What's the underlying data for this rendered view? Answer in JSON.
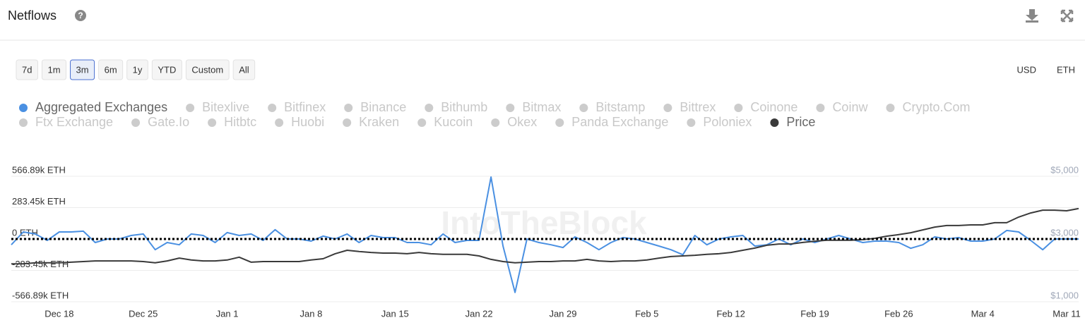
{
  "header": {
    "title": "Netflows"
  },
  "ui": {
    "ranges": [
      {
        "label": "7d",
        "active": false
      },
      {
        "label": "1m",
        "active": false
      },
      {
        "label": "3m",
        "active": true
      },
      {
        "label": "6m",
        "active": false
      },
      {
        "label": "1y",
        "active": false
      },
      {
        "label": "YTD",
        "active": false
      },
      {
        "label": "Custom",
        "active": false
      },
      {
        "label": "All",
        "active": false
      }
    ],
    "currencies": [
      {
        "label": "USD",
        "active": false
      },
      {
        "label": "ETH",
        "active": true
      }
    ]
  },
  "chart_data": {
    "type": "line",
    "watermark": "IntoTheBlock",
    "categories": [
      null,
      null,
      null,
      null,
      "Dec 18",
      null,
      null,
      null,
      null,
      null,
      null,
      "Dec 25",
      null,
      null,
      null,
      null,
      null,
      null,
      "Jan 1",
      null,
      null,
      null,
      null,
      null,
      null,
      "Jan 8",
      null,
      null,
      null,
      null,
      null,
      null,
      "Jan 15",
      null,
      null,
      null,
      null,
      null,
      null,
      "Jan 22",
      null,
      null,
      null,
      null,
      null,
      null,
      "Jan 29",
      null,
      null,
      null,
      null,
      null,
      null,
      "Feb 5",
      null,
      null,
      null,
      null,
      null,
      null,
      "Feb 12",
      null,
      null,
      null,
      null,
      null,
      null,
      "Feb 19",
      null,
      null,
      null,
      null,
      null,
      null,
      "Feb 26",
      null,
      null,
      null,
      null,
      null,
      null,
      "Mar 4",
      null,
      null,
      null,
      null,
      null,
      null,
      "Mar 11",
      null
    ],
    "series": [
      {
        "name": "Aggregated Exchanges",
        "color": "#4a90e2",
        "values": [
          -52000,
          64000,
          45000,
          -13000,
          64000,
          64000,
          71000,
          -32000,
          0,
          0,
          32000,
          45000,
          -97000,
          -32000,
          -52000,
          45000,
          32000,
          -32000,
          58000,
          32000,
          45000,
          -13000,
          84000,
          0,
          0,
          -19000,
          26000,
          0,
          45000,
          -32000,
          32000,
          13000,
          13000,
          -32000,
          -32000,
          -52000,
          45000,
          -32000,
          -13000,
          -13000,
          560000,
          -64000,
          -483000,
          0,
          -32000,
          -52000,
          -77000,
          19000,
          -32000,
          -97000,
          -32000,
          13000,
          0,
          -32000,
          -64000,
          -97000,
          -142000,
          32000,
          -52000,
          0,
          19000,
          32000,
          -64000,
          -52000,
          0,
          -52000,
          0,
          -32000,
          0,
          32000,
          0,
          -32000,
          -19000,
          -19000,
          -32000,
          -84000,
          -52000,
          19000,
          0,
          13000,
          -19000,
          -19000,
          0,
          77000,
          64000,
          -13000,
          -97000,
          0,
          0,
          0
        ]
      },
      {
        "name": "Price",
        "color": "#3a3a3a",
        "axis": "y2",
        "values": [
          2210,
          2210,
          2240,
          2240,
          2240,
          2260,
          2280,
          2300,
          2300,
          2300,
          2300,
          2280,
          2240,
          2300,
          2390,
          2330,
          2300,
          2300,
          2330,
          2420,
          2260,
          2280,
          2280,
          2280,
          2280,
          2330,
          2370,
          2530,
          2640,
          2600,
          2570,
          2550,
          2550,
          2530,
          2570,
          2530,
          2510,
          2510,
          2510,
          2460,
          2350,
          2280,
          2240,
          2260,
          2280,
          2280,
          2300,
          2300,
          2350,
          2300,
          2280,
          2300,
          2300,
          2330,
          2390,
          2440,
          2460,
          2480,
          2510,
          2530,
          2570,
          2640,
          2710,
          2800,
          2840,
          2840,
          2890,
          2930,
          2960,
          2960,
          2960,
          2980,
          3020,
          3090,
          3140,
          3200,
          3290,
          3380,
          3430,
          3430,
          3450,
          3450,
          3520,
          3520,
          3700,
          3830,
          3920,
          3920,
          3900,
          3970
        ]
      }
    ],
    "hidden_series": [
      "Bitexlive",
      "Bitfinex",
      "Binance",
      "Bithumb",
      "Bitmax",
      "Bitstamp",
      "Bittrex",
      "Coinone",
      "Coinw",
      "Crypto.Com",
      "Ftx Exchange",
      "Gate.Io",
      "Hitbtc",
      "Huobi",
      "Kraken",
      "Kucoin",
      "Okex",
      "Panda Exchange",
      "Poloniex"
    ],
    "ylim": [
      -566890,
      566890
    ],
    "yticks": [
      {
        "value": -566890,
        "label": "-566.89k ETH"
      },
      {
        "value": -283450,
        "label": "-283.45k ETH"
      },
      {
        "value": 0,
        "label": "0 ETH"
      },
      {
        "value": 283450,
        "label": "283.45k ETH"
      },
      {
        "value": 566890,
        "label": "566.89k ETH"
      }
    ],
    "y2lim": [
      1000,
      5000
    ],
    "y2ticks": [
      {
        "value": 1000,
        "label": "$1,000"
      },
      {
        "value": 3000,
        "label": "$3,000"
      },
      {
        "value": 5000,
        "label": "$5,000"
      }
    ],
    "grid": true,
    "zero_line": true
  }
}
